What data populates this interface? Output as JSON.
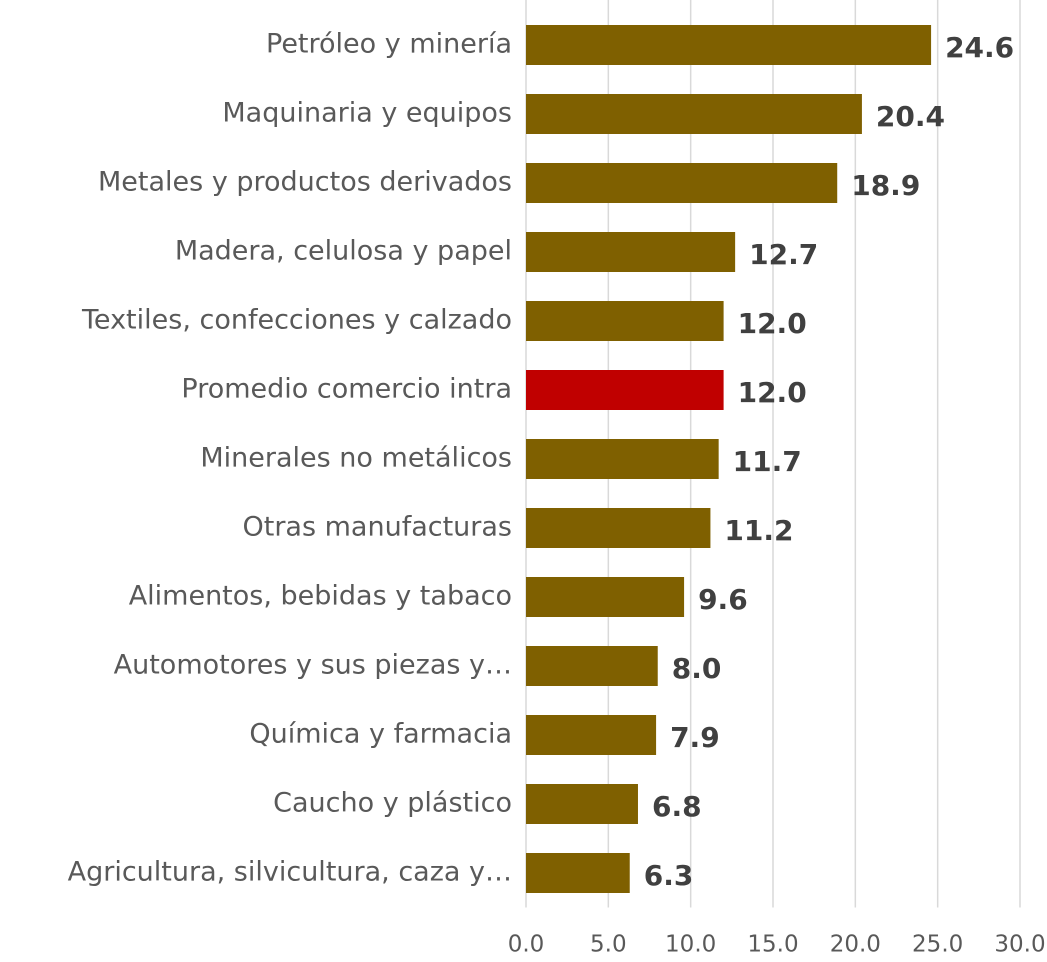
{
  "chart_data": {
    "type": "barh",
    "categories": [
      "Petróleo y minería",
      "Maquinaria y equipos",
      "Metales y productos derivados",
      "Madera, celulosa y papel",
      "Textiles, confecciones y calzado",
      "Promedio comercio intra",
      "Minerales no metálicos",
      "Otras manufacturas",
      "Alimentos, bebidas y tabaco",
      "Automotores y sus piezas y…",
      "Química y farmacia",
      "Caucho y plástico",
      "Agricultura, silvicultura, caza y…"
    ],
    "values": [
      24.6,
      20.4,
      18.9,
      12.7,
      12.0,
      12.0,
      11.7,
      11.2,
      9.6,
      8.0,
      7.9,
      6.8,
      6.3
    ],
    "value_labels": [
      "24.6",
      "20.4",
      "18.9",
      "12.7",
      "12.0",
      "12.0",
      "11.7",
      "11.2",
      "9.6",
      "8.0",
      "7.9",
      "6.8",
      "6.3"
    ],
    "colors": [
      "#7f6000",
      "#7f6000",
      "#7f6000",
      "#7f6000",
      "#7f6000",
      "#c00000",
      "#7f6000",
      "#7f6000",
      "#7f6000",
      "#7f6000",
      "#7f6000",
      "#7f6000",
      "#7f6000"
    ],
    "xlim": [
      0,
      30
    ],
    "xticks": [
      {
        "value": 0,
        "label": "0.0"
      },
      {
        "value": 5,
        "label": "5.0"
      },
      {
        "value": 10,
        "label": "10.0"
      },
      {
        "value": 15,
        "label": "15.0"
      },
      {
        "value": 20,
        "label": "20.0"
      },
      {
        "value": 25,
        "label": "25.0"
      },
      {
        "value": 30,
        "label": "30.0"
      }
    ],
    "grid": true
  }
}
